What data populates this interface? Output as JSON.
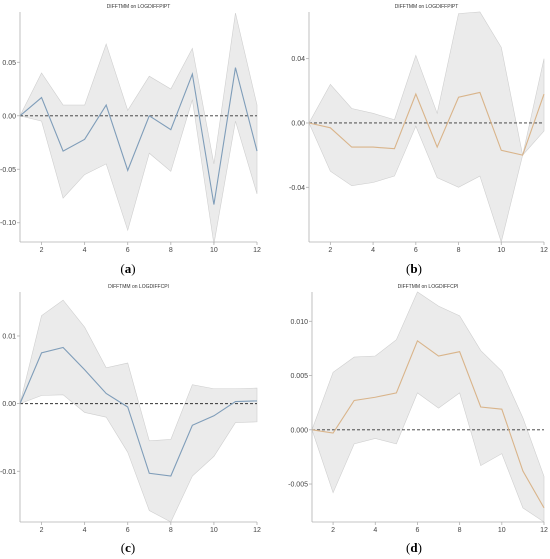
{
  "figure": {
    "caption_labels": [
      "a",
      "b",
      "c",
      "d"
    ]
  },
  "colors": {
    "band_fill": "#ebebeb",
    "band_stroke": "#cfcfcf",
    "axis": "#b0b0b0",
    "zero_line": "#333333",
    "blue_series": "#7f9db9",
    "orange_series": "#d9b48a"
  },
  "chart_data": [
    {
      "type": "line",
      "title": "DIFFTMM on LOGDIFFPIPT",
      "x": [
        1,
        2,
        3,
        4,
        5,
        6,
        7,
        8,
        9,
        10,
        11,
        12
      ],
      "xticks": [
        2,
        4,
        6,
        8,
        10,
        12
      ],
      "xticklabels": [
        "2",
        "4",
        "6",
        "8",
        "10",
        "12"
      ],
      "xlim": [
        1,
        12
      ],
      "ylim": [
        -0.118,
        0.097
      ],
      "yticks": [
        0.05,
        0.0,
        -0.05,
        -0.1
      ],
      "yticklabels": [
        "0.05",
        "0.00",
        "-0.05",
        "-0.10"
      ],
      "color": "#7f9db9",
      "series": [
        {
          "values": [
            0.0,
            0.017,
            -0.033,
            -0.022,
            0.01,
            -0.051,
            0.0,
            -0.013,
            0.039,
            -0.083,
            0.045,
            -0.033
          ]
        }
      ],
      "band_upper": [
        0.0,
        0.04,
        0.01,
        0.01,
        0.067,
        0.005,
        0.037,
        0.025,
        0.063,
        -0.045,
        0.096,
        0.01
      ],
      "band_lower": [
        0.0,
        -0.005,
        -0.077,
        -0.055,
        -0.045,
        -0.107,
        -0.035,
        -0.052,
        0.015,
        -0.12,
        -0.005,
        -0.073
      ]
    },
    {
      "type": "line",
      "title": "DIFFTMM on LOGDIFFPIPT",
      "x": [
        1,
        2,
        3,
        4,
        5,
        6,
        7,
        8,
        9,
        10,
        11,
        12
      ],
      "xticks": [
        2,
        4,
        6,
        8,
        10,
        12
      ],
      "xticklabels": [
        "2",
        "4",
        "6",
        "8",
        "10",
        "12"
      ],
      "xlim": [
        1,
        12
      ],
      "ylim": [
        -0.074,
        0.069
      ],
      "yticks": [
        0.04,
        0.0,
        -0.04
      ],
      "yticklabels": [
        "0.04",
        "0.00",
        "-0.04"
      ],
      "color": "#d9b48a",
      "series": [
        {
          "values": [
            0.0,
            -0.003,
            -0.015,
            -0.015,
            -0.016,
            0.018,
            -0.015,
            0.016,
            0.019,
            -0.017,
            -0.02,
            0.018
          ]
        }
      ],
      "band_upper": [
        0.0,
        0.024,
        0.009,
        0.006,
        0.002,
        0.042,
        0.006,
        0.068,
        0.069,
        0.047,
        -0.02,
        0.04
      ],
      "band_lower": [
        0.0,
        -0.03,
        -0.039,
        -0.037,
        -0.033,
        -0.002,
        -0.034,
        -0.04,
        -0.033,
        -0.074,
        -0.02,
        -0.005
      ]
    },
    {
      "type": "line",
      "title": "DIFFTMM on LOGDIFFCPI",
      "x": [
        1,
        2,
        3,
        4,
        5,
        6,
        7,
        8,
        9,
        10,
        11,
        12
      ],
      "xticks": [
        2,
        4,
        6,
        8,
        10,
        12
      ],
      "xticklabels": [
        "2",
        "4",
        "6",
        "8",
        "10",
        "12"
      ],
      "xlim": [
        1,
        12
      ],
      "ylim": [
        -0.0175,
        0.0165
      ],
      "yticks": [
        0.01,
        0.0,
        -0.01
      ],
      "yticklabels": [
        "0.01",
        "0.00",
        "-0.01"
      ],
      "color": "#7f9db9",
      "series": [
        {
          "values": [
            0.0,
            0.0075,
            0.0083,
            0.005,
            0.0015,
            -0.0005,
            -0.0103,
            -0.0107,
            -0.0032,
            -0.0018,
            0.0003,
            0.0004
          ]
        }
      ],
      "band_upper": [
        0.0,
        0.013,
        0.0153,
        0.0113,
        0.0053,
        0.006,
        -0.0055,
        -0.0053,
        0.0028,
        0.0022,
        0.0022,
        0.0023
      ],
      "band_lower": [
        0.0,
        0.0012,
        0.0013,
        -0.0013,
        -0.002,
        -0.0072,
        -0.0158,
        -0.0175,
        -0.0107,
        -0.0078,
        -0.0028,
        -0.0027
      ]
    },
    {
      "type": "line",
      "title": "DIFFTMM on LOGDIFFCPI",
      "x": [
        1,
        2,
        3,
        4,
        5,
        6,
        7,
        8,
        9,
        10,
        11,
        12
      ],
      "xticks": [
        2,
        4,
        6,
        8,
        10,
        12
      ],
      "xticklabels": [
        "2",
        "4",
        "6",
        "8",
        "10",
        "12"
      ],
      "xlim": [
        1,
        12
      ],
      "ylim": [
        -0.0085,
        0.0127
      ],
      "yticks": [
        0.01,
        0.005,
        0.0,
        -0.005
      ],
      "yticklabels": [
        "0.010",
        "0.005",
        "0.000",
        "-0.005"
      ],
      "color": "#d9b48a",
      "series": [
        {
          "values": [
            0.0,
            -0.0003,
            0.0027,
            0.003,
            0.0034,
            0.0082,
            0.0068,
            0.0072,
            0.0021,
            0.0019,
            -0.0038,
            -0.0072
          ]
        }
      ],
      "band_upper": [
        0.0,
        0.0053,
        0.0067,
        0.0068,
        0.0083,
        0.0127,
        0.0114,
        0.0105,
        0.0073,
        0.0054,
        0.0011,
        -0.0043
      ],
      "band_lower": [
        0.0,
        -0.0058,
        -0.0013,
        -0.0008,
        -0.0013,
        0.0034,
        0.002,
        0.0034,
        -0.0033,
        -0.0022,
        -0.0072,
        -0.0085
      ]
    }
  ]
}
